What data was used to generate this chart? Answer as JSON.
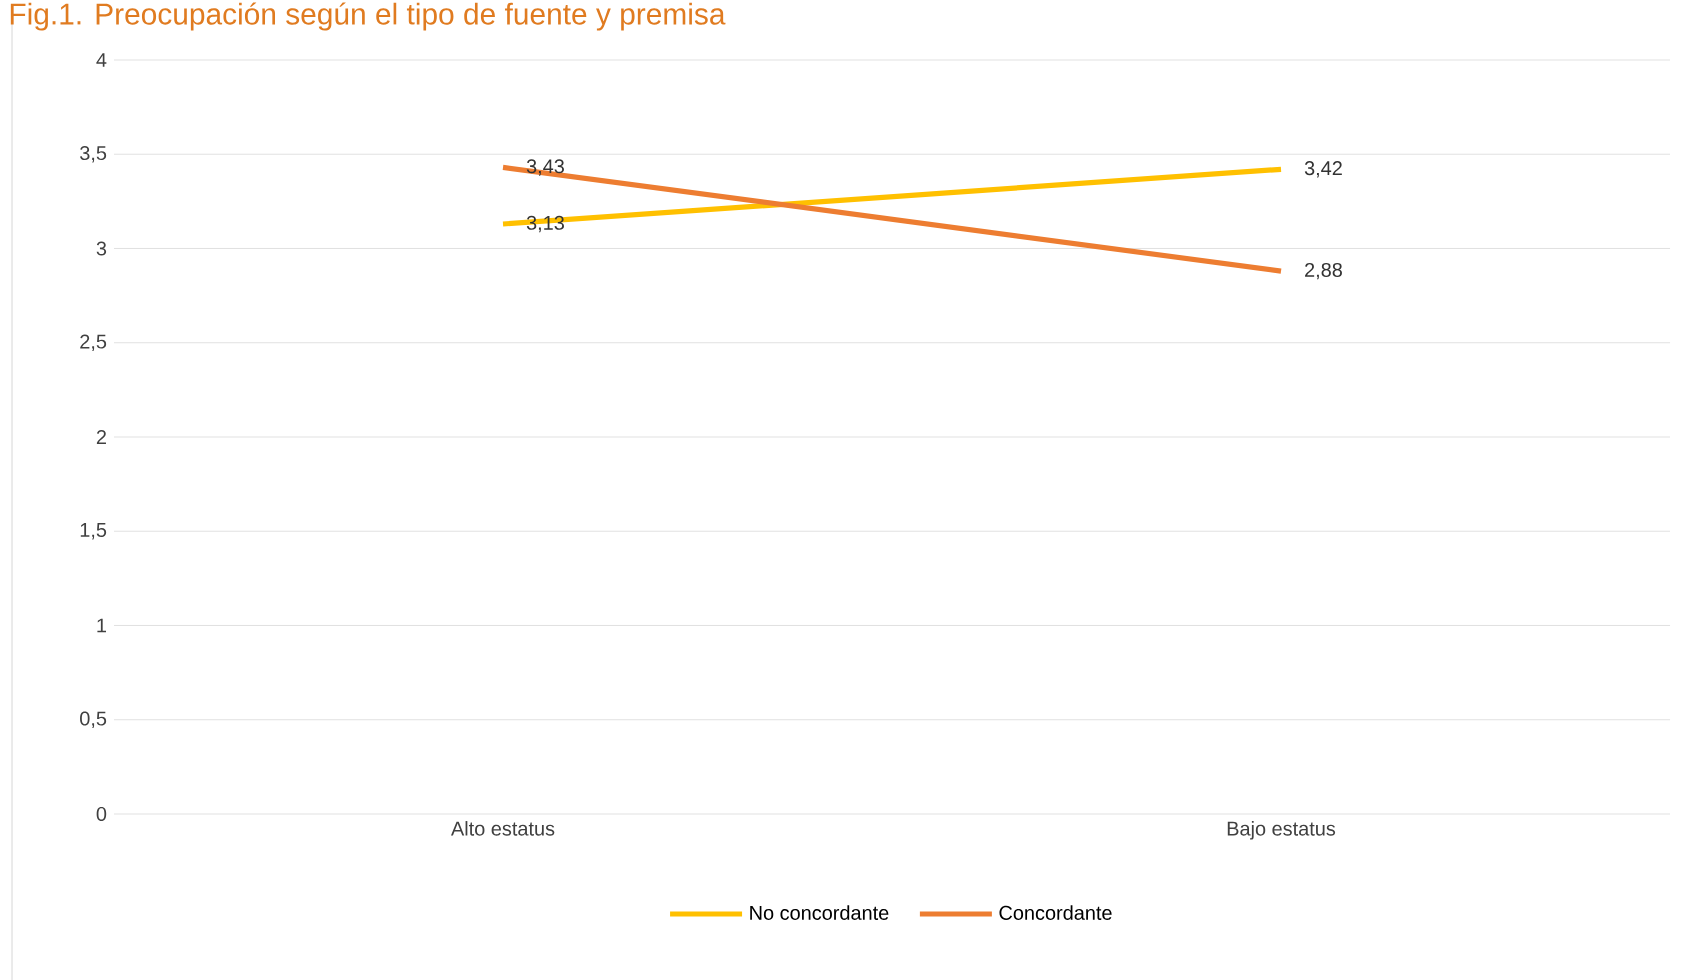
{
  "chart_data": {
    "type": "line",
    "title": "Fig.1. Preocupación según el tipo de fuente y premisa",
    "categories": [
      "Alto estatus",
      "Bajo estatus"
    ],
    "series": [
      {
        "name": "No concordante",
        "color": "#ffc000",
        "values": [
          3.13,
          3.42
        ],
        "value_labels": [
          "3,13",
          "3,42"
        ]
      },
      {
        "name": "Concordante",
        "color": "#ed7d31",
        "values": [
          3.43,
          2.88
        ],
        "value_labels": [
          "3,43",
          "2,88"
        ]
      }
    ],
    "ylim": [
      0,
      4
    ],
    "yticks": [
      0,
      {
        "value": 0.5,
        "label": "0,5"
      },
      1,
      {
        "value": 1.5,
        "label": "1,5"
      },
      2,
      {
        "value": 2.5,
        "label": "2,5"
      },
      3,
      {
        "value": 3.5,
        "label": "3,5"
      },
      4
    ],
    "grid": "y",
    "legend": "bottom",
    "marker": "none",
    "line_style": "solid"
  }
}
